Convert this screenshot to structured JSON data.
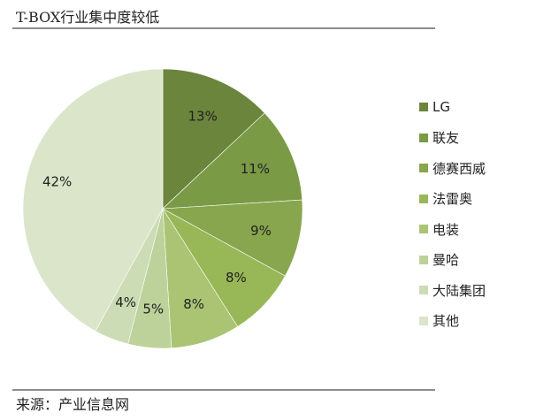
{
  "title": "T-BOX行业集中度较低",
  "source": "来源：产业信息网",
  "chart_data": {
    "type": "pie",
    "title": "T-BOX行业集中度较低",
    "categories": [
      "LG",
      "联友",
      "德赛西威",
      "法雷奥",
      "电装",
      "曼哈",
      "大陆集团",
      "其他"
    ],
    "values": [
      13,
      11,
      9,
      8,
      8,
      5,
      4,
      42
    ],
    "labels": [
      "13%",
      "11%",
      "9%",
      "8%",
      "8%",
      "5%",
      "4%",
      "42%"
    ],
    "colors": [
      "#6b853c",
      "#7a9a45",
      "#87a64d",
      "#98b757",
      "#aac474",
      "#bcd29a",
      "#ccdcb5",
      "#dae5ca"
    ],
    "legend_position": "right",
    "start_angle": "12 o'clock, clockwise"
  }
}
